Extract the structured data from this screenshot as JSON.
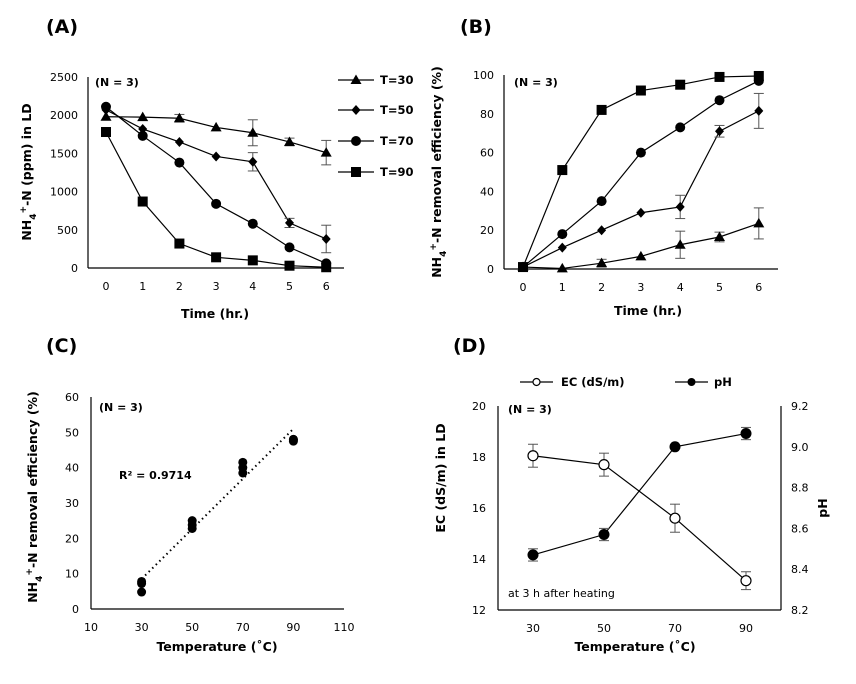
{
  "chart_data": [
    {
      "id": "A",
      "panel_label": "(A)",
      "type": "line",
      "title": "",
      "annotation": "(N = 3)",
      "xlabel": "Time (hr.)",
      "ylabel": "NH4+-N (ppm) in LD",
      "ylabel_parts": [
        "NH",
        "4",
        "+",
        "-N (ppm) in LD"
      ],
      "x": [
        0,
        1,
        2,
        3,
        4,
        5,
        6
      ],
      "xticks": [
        "0",
        "1",
        "2",
        "3",
        "4",
        "5",
        "6"
      ],
      "ylim": [
        0,
        2500
      ],
      "yticks": [
        "0",
        "500",
        "1000",
        "1500",
        "2000",
        "2500"
      ],
      "legend_position": "right",
      "series": [
        {
          "name": "T=30",
          "marker": "triangle",
          "values": [
            1980,
            1975,
            1960,
            1840,
            1770,
            1650,
            1510
          ],
          "errors": [
            0,
            0,
            50,
            0,
            170,
            50,
            160
          ]
        },
        {
          "name": "T=50",
          "marker": "diamond",
          "values": [
            2070,
            1820,
            1650,
            1460,
            1390,
            590,
            380
          ],
          "errors": [
            0,
            0,
            0,
            0,
            120,
            60,
            180
          ]
        },
        {
          "name": "T=70",
          "marker": "circle",
          "values": [
            2110,
            1730,
            1380,
            840,
            580,
            270,
            60
          ],
          "errors": [
            0,
            0,
            0,
            0,
            0,
            0,
            0
          ]
        },
        {
          "name": "T=90",
          "marker": "square",
          "values": [
            1780,
            870,
            320,
            140,
            100,
            30,
            10
          ],
          "errors": [
            0,
            0,
            0,
            0,
            0,
            0,
            0
          ]
        }
      ]
    },
    {
      "id": "B",
      "panel_label": "(B)",
      "type": "line",
      "title": "",
      "annotation": "(N = 3)",
      "xlabel": "Time (hr.)",
      "ylabel": "NH4+-N removal efficiency (%)",
      "ylabel_parts": [
        "NH",
        "4",
        "+",
        "-N removal efficiency (%)"
      ],
      "x": [
        0,
        1,
        2,
        3,
        4,
        5,
        6
      ],
      "xticks": [
        "0",
        "1",
        "2",
        "3",
        "4",
        "5",
        "6"
      ],
      "ylim": [
        0,
        100
      ],
      "yticks": [
        "0",
        "20",
        "40",
        "60",
        "80",
        "100"
      ],
      "series": [
        {
          "name": "T=90",
          "marker": "square",
          "values": [
            1,
            51,
            82,
            92,
            95,
            99,
            99.5
          ],
          "errors": [
            0,
            0,
            0,
            0,
            0,
            0,
            0
          ]
        },
        {
          "name": "T=70",
          "marker": "circle",
          "values": [
            1,
            18,
            35,
            60,
            73,
            87,
            97
          ],
          "errors": [
            0,
            0,
            0,
            0,
            0,
            0,
            0
          ]
        },
        {
          "name": "T=50",
          "marker": "diamond",
          "values": [
            1,
            11,
            20,
            29,
            32,
            71,
            81.5
          ],
          "errors": [
            0,
            0,
            0,
            0,
            6,
            3,
            9
          ]
        },
        {
          "name": "T=30",
          "marker": "triangle",
          "values": [
            1,
            0.3,
            3,
            6.5,
            12.5,
            16.5,
            23.5
          ],
          "errors": [
            0,
            0,
            2,
            0,
            7,
            2.5,
            8
          ]
        }
      ]
    },
    {
      "id": "C",
      "panel_label": "(C)",
      "type": "scatter",
      "title": "",
      "annotation": "(N = 3)",
      "r_squared_label": "R² = 0.9714",
      "xlabel": "Temperature (˚C)",
      "ylabel": "NH4+-N removal efficiency (%)",
      "ylabel_parts": [
        "NH",
        "4",
        "+",
        "-N removal efficiency (%)"
      ],
      "xlim": [
        10,
        110
      ],
      "xticks": [
        "10",
        "30",
        "50",
        "70",
        "90",
        "110"
      ],
      "ylim": [
        0,
        60
      ],
      "yticks": [
        "0",
        "10",
        "20",
        "30",
        "40",
        "50",
        "60"
      ],
      "points": [
        {
          "x": 30,
          "y": 4.8
        },
        {
          "x": 30,
          "y": 7.2
        },
        {
          "x": 30,
          "y": 7.8
        },
        {
          "x": 50,
          "y": 22.8
        },
        {
          "x": 50,
          "y": 23.8
        },
        {
          "x": 50,
          "y": 25
        },
        {
          "x": 70,
          "y": 38.5
        },
        {
          "x": 70,
          "y": 40
        },
        {
          "x": 70,
          "y": 41.5
        },
        {
          "x": 90,
          "y": 47.5
        },
        {
          "x": 90,
          "y": 48
        },
        {
          "x": 90,
          "y": 48
        }
      ],
      "trendline": {
        "type": "linear",
        "from": {
          "x": 30,
          "y": 8.5
        },
        "to": {
          "x": 90,
          "y": 51
        }
      }
    },
    {
      "id": "D",
      "panel_label": "(D)",
      "type": "line",
      "title": "",
      "annotation": "(N = 3)",
      "footnote": "at 3 h after heating",
      "xlabel": "Temperature (˚C)",
      "ylabel": "EC (dS/m) in LD",
      "y2label": "pH",
      "categories": [
        "30",
        "50",
        "70",
        "90"
      ],
      "ylim": [
        12,
        20
      ],
      "yticks": [
        "12",
        "14",
        "16",
        "18",
        "20"
      ],
      "y2lim": [
        8.2,
        9.2
      ],
      "y2ticks": [
        "8.2",
        "8.4",
        "8.6",
        "8.8",
        "9.0",
        "9.2"
      ],
      "legend_position": "top",
      "series": [
        {
          "name": "EC (dS/m)",
          "axis": "left",
          "marker": "open-circle",
          "values": [
            18.05,
            17.7,
            15.6,
            13.15
          ],
          "errors": [
            0.45,
            0.45,
            0.55,
            0.35
          ]
        },
        {
          "name": "pH",
          "axis": "right",
          "marker": "filled-circle",
          "values": [
            8.47,
            8.57,
            9.0,
            9.065
          ],
          "errors": [
            0.03,
            0.03,
            0,
            0.03
          ]
        }
      ]
    }
  ]
}
